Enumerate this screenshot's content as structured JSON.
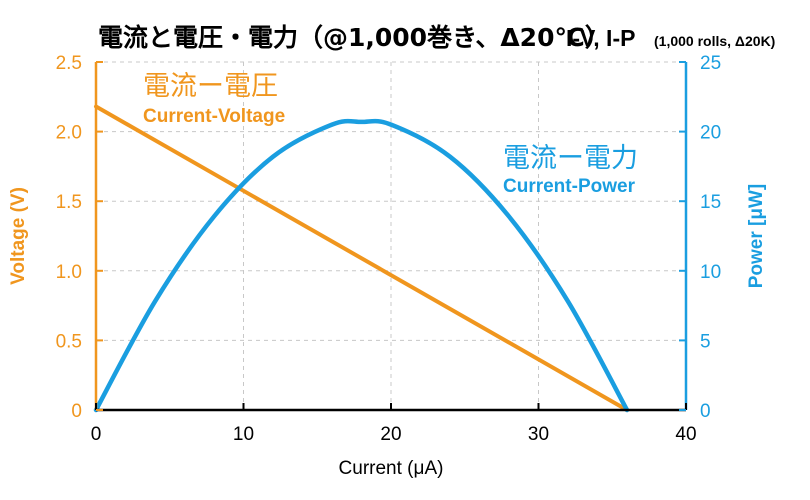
{
  "chart_data": {
    "type": "line",
    "title": "電流と電圧・電力（@1,000巻き、Δ20℃）",
    "title_en": "I-V, I-P",
    "title_en_small": "(1,000 rolls, Δ20K)",
    "xlabel": "Current (μA)",
    "ylabel_left": "Voltage (V)",
    "ylabel_right": "Power [μW]",
    "xlim": [
      0,
      40
    ],
    "ylim_left": [
      0,
      2.5
    ],
    "ylim_right": [
      0,
      25
    ],
    "grid": true,
    "xticks": [
      "0",
      "10",
      "20",
      "30",
      "40"
    ],
    "yticks_left": [
      "0",
      "0.5",
      "1.0",
      "1.5",
      "2.0",
      "2.5"
    ],
    "yticks_right": [
      "0",
      "5",
      "10",
      "15",
      "20",
      "25"
    ],
    "colors": {
      "voltage": "#f0961e",
      "power": "#1a9ee0",
      "axis": "#000000",
      "grid": "#c8c8c8"
    },
    "series": [
      {
        "name": "電流ー電圧",
        "name_en": "Current-Voltage",
        "axis": "left",
        "x": [
          0,
          36
        ],
        "y": [
          2.18,
          0
        ]
      },
      {
        "name": "電流ー電力",
        "name_en": "Current-Power",
        "axis": "right",
        "x": [
          0,
          4,
          8,
          12,
          16,
          18,
          20,
          24,
          28,
          32,
          36
        ],
        "y": [
          0,
          7.8,
          13.9,
          18.2,
          20.5,
          20.7,
          20.5,
          18.2,
          13.9,
          7.8,
          0
        ]
      }
    ]
  }
}
